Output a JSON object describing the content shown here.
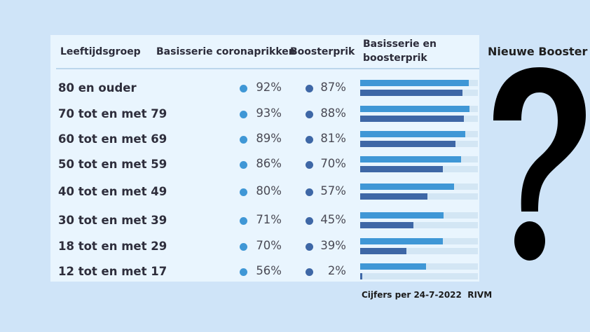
{
  "headers": {
    "age_group": "Leeftijdsgroep",
    "basic_series": "Basisserie coronaprikken",
    "booster": "Boosterprik",
    "combined_line1": "Basisserie en",
    "combined_line2": "boosterprik"
  },
  "side_title": "Nieuwe Booster",
  "source_note": "Cijfers per 24-7-2022  RIVM",
  "question_mark_icon": "question-mark-icon",
  "colors": {
    "page_background": "#cfe4f8",
    "panel_background": "#e9f5fe",
    "basic_series": "#3f97d6",
    "booster": "#3e67a6",
    "track": "#d3e6f4"
  },
  "chart_data": {
    "type": "bar",
    "orientation": "horizontal",
    "categories": [
      "80 en ouder",
      "70 tot en met 79",
      "60 tot en met 69",
      "50 tot en met 59",
      "40 tot en met 49",
      "30 tot en met 39",
      "18 tot en met 29",
      "12 tot en met 17"
    ],
    "series": [
      {
        "name": "Basisserie coronaprikken",
        "values": [
          92,
          93,
          89,
          86,
          80,
          71,
          70,
          56
        ],
        "labels": [
          "92%",
          "93%",
          "89%",
          "86%",
          "80%",
          "71%",
          "70%",
          "56%"
        ]
      },
      {
        "name": "Boosterprik",
        "values": [
          87,
          88,
          81,
          70,
          57,
          45,
          39,
          2
        ],
        "labels": [
          "87%",
          "88%",
          "81%",
          "70%",
          "57%",
          "45%",
          "39%",
          "2%"
        ]
      }
    ],
    "xlim": [
      0,
      100
    ],
    "unit": "%",
    "grid": false
  }
}
